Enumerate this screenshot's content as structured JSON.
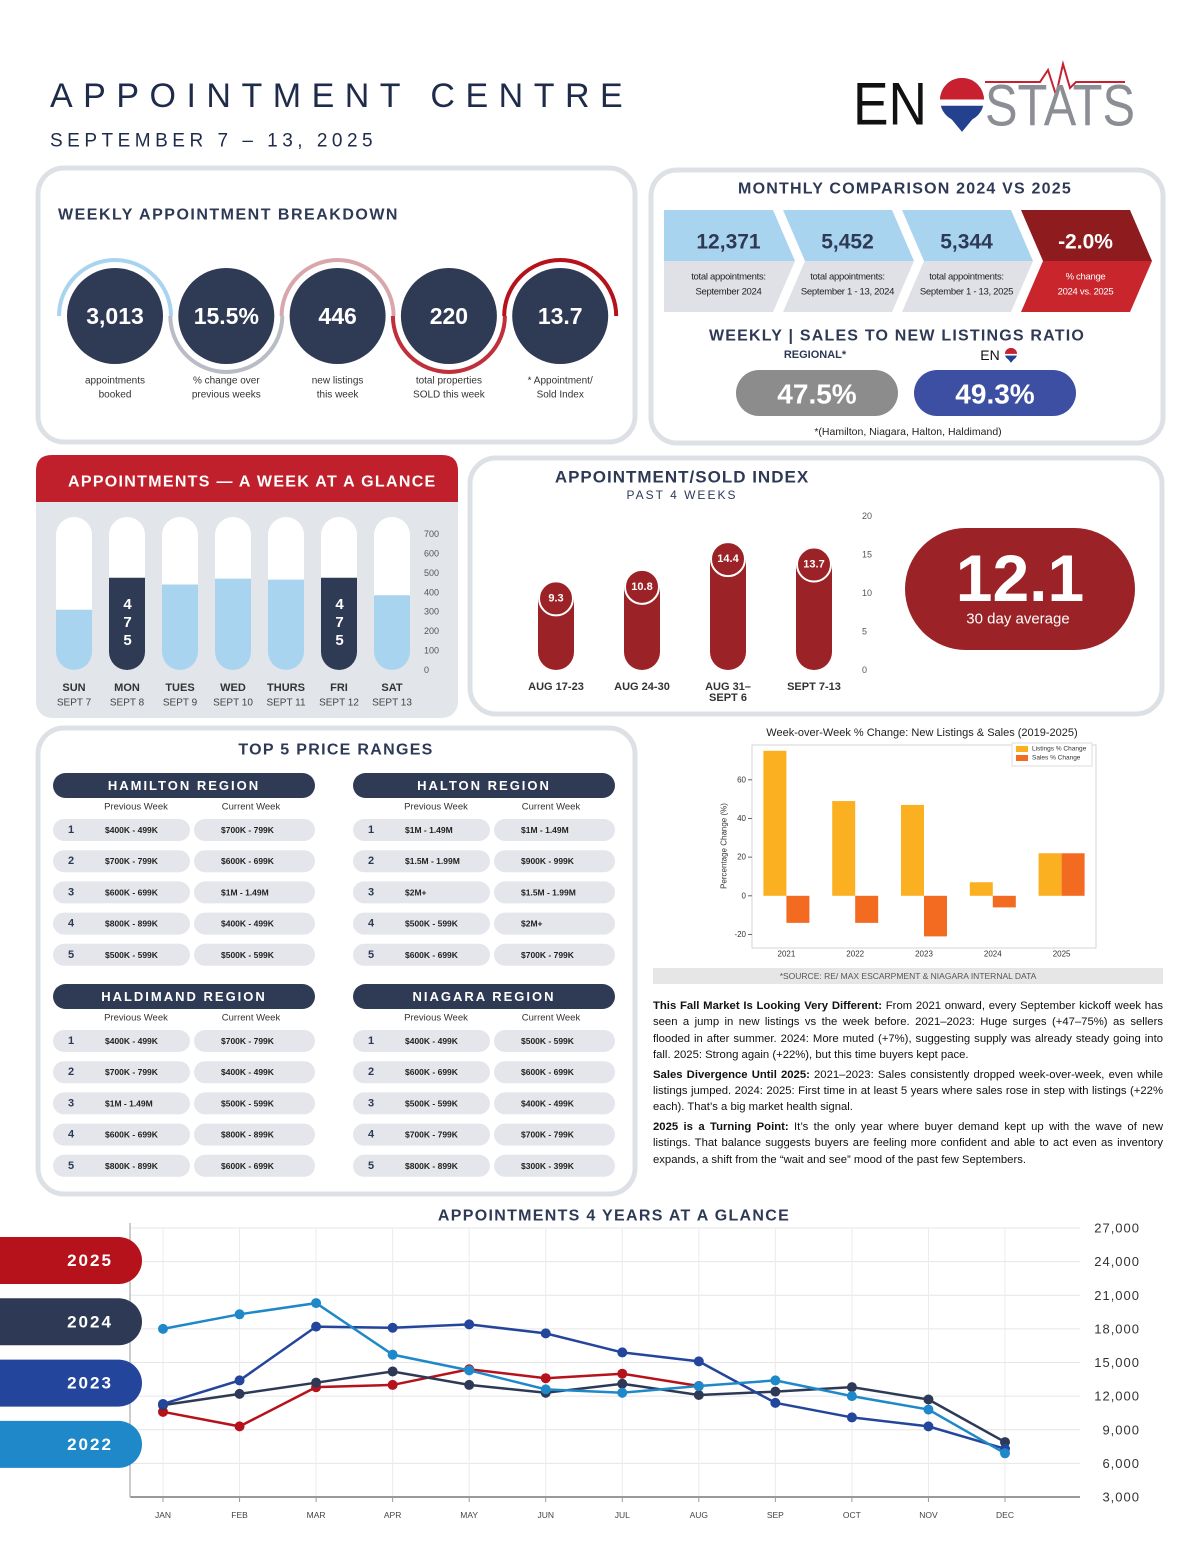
{
  "header": {
    "title": "APPOINTMENT CENTRE",
    "subtitle": "SEPTEMBER 7 – 13, 2025",
    "logo": {
      "left": "EN",
      "right": "STATS"
    }
  },
  "weekly_breakdown": {
    "title": "WEEKLY APPOINTMENT BREAKDOWN",
    "items": [
      {
        "value": "3,013",
        "label": [
          "appointments",
          "booked"
        ]
      },
      {
        "value": "15.5%",
        "label": [
          "% change over",
          "previous weeks"
        ]
      },
      {
        "value": "446",
        "label": [
          "new listings",
          "this week"
        ]
      },
      {
        "value": "220",
        "label": [
          "total properties",
          "SOLD this week"
        ]
      },
      {
        "value": "13.7",
        "label": [
          "* Appointment/",
          "Sold Index"
        ]
      }
    ]
  },
  "monthly_comparison": {
    "title": "MONTHLY COMPARISON 2024 VS 2025",
    "items": [
      {
        "value": "12,371",
        "label": [
          "total appointments:",
          "September 2024"
        ]
      },
      {
        "value": "5,452",
        "label": [
          "total appointments:",
          "September 1 - 13, 2024"
        ]
      },
      {
        "value": "5,344",
        "label": [
          "total appointments:",
          "September 1 - 13, 2025"
        ]
      },
      {
        "value": "-2.0%",
        "label": [
          "% change",
          "2024 vs. 2025"
        ]
      }
    ]
  },
  "sales_ratio": {
    "title": "WEEKLY | SALES TO NEW LISTINGS RATIO",
    "regional_label": "REGIONAL*",
    "regional_value": "47.5%",
    "eno_label": "EN",
    "eno_value": "49.3%",
    "note": "*(Hamilton, Niagara, Halton, Haldimand)"
  },
  "index_average": {
    "value": "12.1",
    "label": "30 day average"
  },
  "price_ranges": {
    "title": "TOP 5 PRICE RANGES",
    "columns": [
      "Previous Week",
      "Current Week"
    ],
    "regions": [
      {
        "name": "HAMILTON REGION",
        "rows": [
          [
            1,
            "$400K - 499K",
            "$700K - 799K"
          ],
          [
            2,
            "$700K - 799K",
            "$600K - 699K"
          ],
          [
            3,
            "$600K - 699K",
            "$1M - 1.49M"
          ],
          [
            4,
            "$800K - 899K",
            "$400K - 499K"
          ],
          [
            5,
            "$500K - 599K",
            "$500K - 599K"
          ]
        ]
      },
      {
        "name": "HALTON REGION",
        "rows": [
          [
            1,
            "$1M - 1.49M",
            "$1M - 1.49M"
          ],
          [
            2,
            "$1.5M - 1.99M",
            "$900K - 999K"
          ],
          [
            3,
            "$2M+",
            "$1.5M - 1.99M"
          ],
          [
            4,
            "$500K - 599K",
            "$2M+"
          ],
          [
            5,
            "$600K - 699K",
            "$700K - 799K"
          ]
        ]
      },
      {
        "name": "HALDIMAND REGION",
        "rows": [
          [
            1,
            "$400K - 499K",
            "$700K - 799K"
          ],
          [
            2,
            "$700K - 799K",
            "$400K - 499K"
          ],
          [
            3,
            "$1M - 1.49M",
            "$500K - 599K"
          ],
          [
            4,
            "$600K - 699K",
            "$800K - 899K"
          ],
          [
            5,
            "$800K - 899K",
            "$600K - 699K"
          ]
        ]
      },
      {
        "name": "NIAGARA REGION",
        "rows": [
          [
            1,
            "$400K - 499K",
            "$500K - 599K"
          ],
          [
            2,
            "$600K - 699K",
            "$600K - 699K"
          ],
          [
            3,
            "$500K - 599K",
            "$400K - 499K"
          ],
          [
            4,
            "$700K - 799K",
            "$700K - 799K"
          ],
          [
            5,
            "$800K - 899K",
            "$300K - 399K"
          ]
        ]
      }
    ]
  },
  "source": "*SOURCE:  RE/ MAX ESCARPMENT & NIAGARA INTERNAL DATA",
  "commentary": [
    {
      "lead": "This Fall Market Is Looking Very Different:",
      "text": " From 2021 onward, every September kickoff week has seen a jump in new listings vs the week before.  2021–2023: Huge surges (+47–75%) as sellers flooded in after summer.  2024: More muted (+7%), suggesting supply was already steady going into fall. 2025: Strong again (+22%), but this time buyers kept pace."
    },
    {
      "lead": "Sales Divergence Until 2025:",
      "text": " 2021–2023: Sales consistently dropped week-over-week, even while listings jumped. 2024: 2025: First time in at least 5 years where sales rose in step with listings (+22% each). That’s a big market health signal."
    },
    {
      "lead": "2025 is a Turning Point:",
      "text": " It’s the only year where buyer demand kept up with the wave of new listings. That balance suggests buyers are feeling more confident and able to act even as inventory expands, a shift from the “wait and see” mood of the past few Septembers."
    }
  ],
  "chart_data": [
    {
      "type": "bar",
      "title": "APPOINTMENTS — A WEEK AT A GLANCE",
      "categories": [
        "SUN",
        "MON",
        "TUES",
        "WED",
        "THURS",
        "FRI",
        "SAT"
      ],
      "dates": [
        "SEPT 7",
        "SEPT 8",
        "SEPT 9",
        "SEPT 10",
        "SEPT 11",
        "SEPT 12",
        "SEPT 13"
      ],
      "values": [
        310,
        475,
        440,
        470,
        465,
        475,
        385
      ],
      "value_labels": [
        null,
        "475",
        null,
        null,
        null,
        "475",
        null
      ],
      "colors": [
        "#a9d4f0",
        "#2f3a55",
        "#a9d4f0",
        "#a9d4f0",
        "#a9d4f0",
        "#2f3a55",
        "#a9d4f0"
      ],
      "ylim": [
        0,
        700
      ],
      "yticks": [
        0,
        100,
        200,
        300,
        400,
        500,
        600,
        700
      ]
    },
    {
      "type": "bar",
      "title": "APPOINTMENT/SOLD INDEX",
      "subtitle": "PAST 4 WEEKS",
      "categories": [
        "AUG 17-23",
        "AUG 24-30",
        "AUG 31– SEPT 6",
        "SEPT 7-13"
      ],
      "values": [
        9.3,
        10.8,
        14.4,
        13.7
      ],
      "color": "#9b2226",
      "ylim": [
        0,
        20
      ],
      "yticks": [
        0,
        5,
        10,
        15,
        20
      ]
    },
    {
      "type": "bar",
      "title": "Week-over-Week % Change: New Listings & Sales (2019-2025)",
      "ylabel": "Percentage Change (%)",
      "categories": [
        "2021",
        "2022",
        "2023",
        "2024",
        "2025"
      ],
      "series": [
        {
          "name": "Listings % Change",
          "color": "#fbb021",
          "values": [
            75,
            49,
            47,
            7,
            22
          ]
        },
        {
          "name": "Sales % Change",
          "color": "#f26b21",
          "values": [
            -14,
            -14,
            -21,
            -6,
            22
          ]
        }
      ],
      "ylim": [
        -27,
        78
      ],
      "yticks": [
        -20,
        0,
        20,
        40,
        60
      ],
      "legend": "upper right"
    },
    {
      "type": "line",
      "title": "APPOINTMENTS 4 YEARS AT A GLANCE",
      "categories": [
        "JAN",
        "FEB",
        "MAR",
        "APR",
        "MAY",
        "JUN",
        "JUL",
        "AUG",
        "SEP",
        "OCT",
        "NOV",
        "DEC"
      ],
      "series": [
        {
          "name": "2025",
          "color": "#b5121b",
          "values": [
            10600,
            9300,
            12800,
            13000,
            14400,
            13600,
            14000,
            12900,
            null,
            null,
            null,
            null
          ]
        },
        {
          "name": "2024",
          "color": "#2e3a55",
          "values": [
            11200,
            12200,
            13200,
            14200,
            13000,
            12300,
            13100,
            12100,
            12400,
            12800,
            11700,
            7900
          ]
        },
        {
          "name": "2023",
          "color": "#23459c",
          "values": [
            11300,
            13400,
            18200,
            18100,
            18400,
            17600,
            15900,
            15100,
            11400,
            10100,
            9300,
            7300
          ]
        },
        {
          "name": "2022",
          "color": "#1f88c9",
          "values": [
            18000,
            19300,
            20300,
            15700,
            14300,
            12600,
            12300,
            12900,
            13400,
            12000,
            10800,
            6900
          ]
        }
      ],
      "ylim": [
        3000,
        27000
      ],
      "yticks": [
        {
          "value": 3000,
          "label": "3,000"
        },
        {
          "value": 6000,
          "label": "6,000"
        },
        {
          "value": 9000,
          "label": "9,000"
        },
        {
          "value": 12000,
          "label": "12,000"
        },
        {
          "value": 15000,
          "label": "15,000"
        },
        {
          "value": 18000,
          "label": "18,000"
        },
        {
          "value": 21000,
          "label": "21,000"
        },
        {
          "value": 24000,
          "label": "24,000"
        },
        {
          "value": 27000,
          "label": "27,000"
        }
      ],
      "grid": true
    }
  ]
}
